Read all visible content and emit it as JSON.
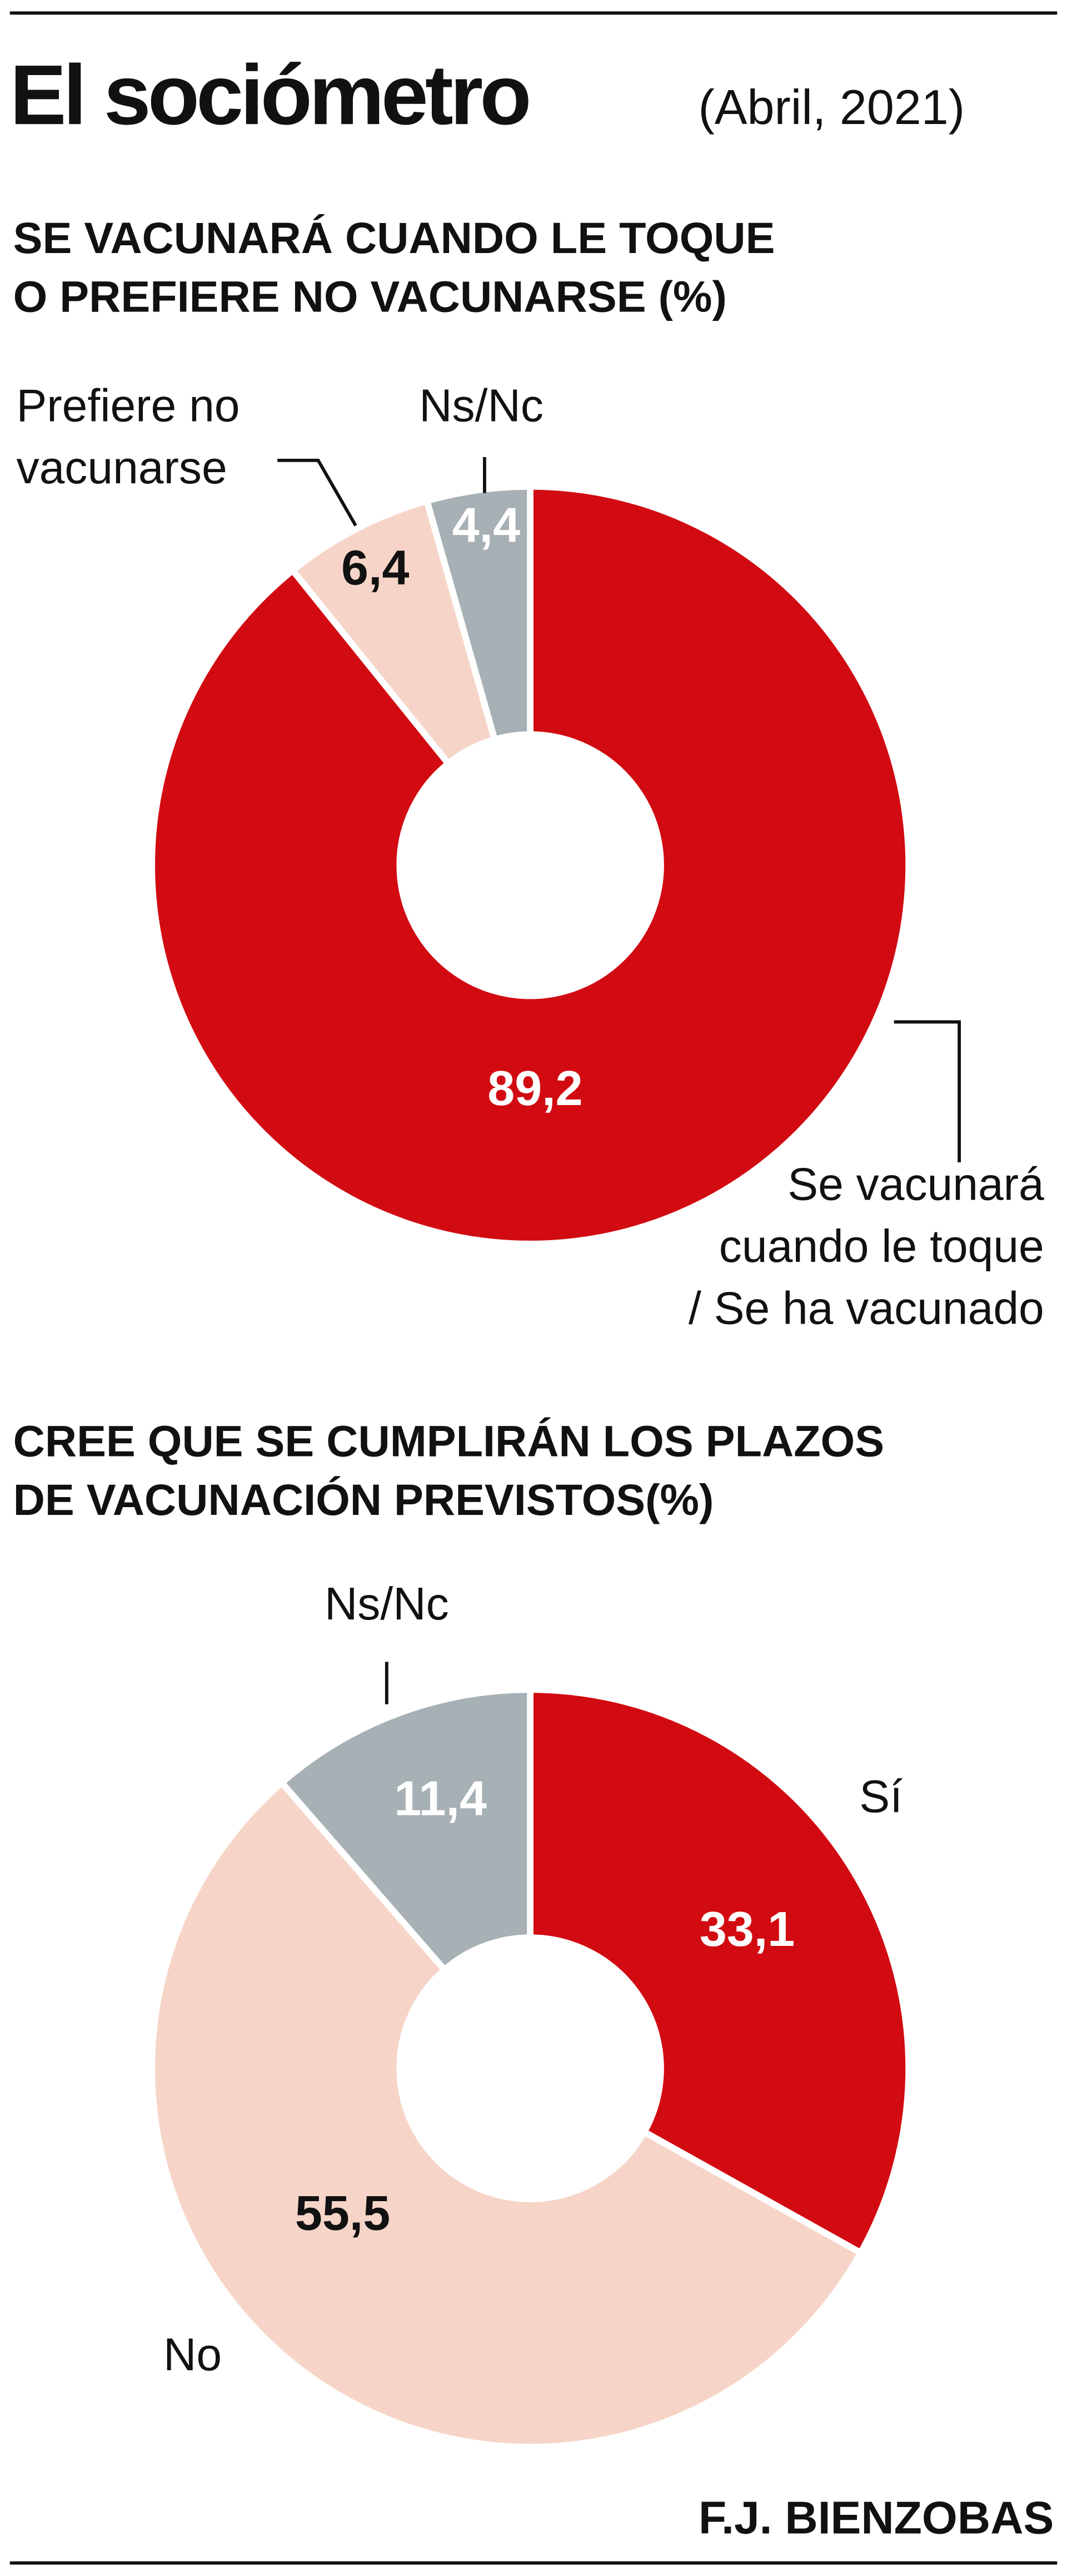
{
  "header": {
    "title": "El sociómetro",
    "subtitle": "(Abril, 2021)"
  },
  "chart_data": [
    {
      "type": "pie",
      "title": [
        "SE VACUNARÁ CUANDO LE TOQUE",
        "O PREFIERE NO VACUNARSE (%)"
      ],
      "categories": [
        [
          "Se vacunará",
          "cuando le toque",
          "/ Se ha vacunado"
        ],
        [
          "Prefiere no",
          "vacunarse"
        ],
        [
          "Ns/Nc"
        ]
      ],
      "values": [
        89.2,
        6.4,
        4.4
      ],
      "value_labels": [
        "89,2",
        "6,4",
        "4,4"
      ],
      "colors": [
        "#d20a11",
        "#f6d5c8",
        "#a7b0b4"
      ]
    },
    {
      "type": "pie",
      "title": [
        "CREE QUE SE CUMPLIRÁN LOS PLAZOS",
        "DE VACUNACIÓN PREVISTOS(%)"
      ],
      "categories": [
        [
          "Sí"
        ],
        [
          "No"
        ],
        [
          "Ns/Nc"
        ]
      ],
      "values": [
        33.1,
        55.5,
        11.4
      ],
      "value_labels": [
        "33,1",
        "55,5",
        "11,4"
      ],
      "colors": [
        "#d20a11",
        "#f6d5c8",
        "#a7b0b4"
      ]
    }
  ],
  "footer": {
    "credit": "F.J. BIENZOBAS"
  }
}
